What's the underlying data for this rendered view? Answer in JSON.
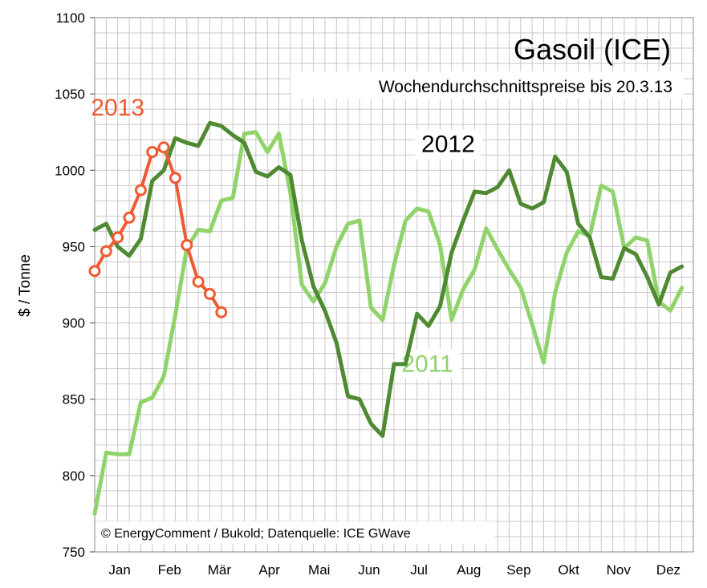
{
  "chart_data": {
    "type": "line",
    "title": "Gasoil (ICE)",
    "subtitle": "Wochendurchschnittspreise bis 20.3.13",
    "ylabel": "$ / Tonne",
    "xlabel": "",
    "ylim": [
      750,
      1100
    ],
    "yticks": [
      750,
      800,
      850,
      900,
      950,
      1000,
      1050,
      1100
    ],
    "months": [
      "Jan",
      "Feb",
      "Mär",
      "Apr",
      "Mai",
      "Jun",
      "Jul",
      "Aug",
      "Sep",
      "Okt",
      "Nov",
      "Dez"
    ],
    "xlim": [
      1,
      53
    ],
    "grid": true,
    "credit": "© EnergyComment / Bukold; Datenquelle: ICE GWave",
    "series": [
      {
        "name": "2011",
        "color": "#8fd36a",
        "label_x": 29.9,
        "label_y": 868,
        "values": [
          775,
          815,
          814,
          814,
          848,
          851,
          865,
          905,
          949,
          961,
          960,
          980,
          982,
          1024,
          1025,
          1012,
          1024,
          985,
          925,
          914,
          926,
          950,
          965,
          967,
          910,
          902,
          938,
          967,
          975,
          973,
          951,
          902,
          922,
          935,
          962,
          948,
          935,
          923,
          899,
          874,
          920,
          946,
          960,
          957,
          990,
          986,
          949,
          956,
          954,
          914,
          908,
          923
        ]
      },
      {
        "name": "2012",
        "color": "#4e8a32",
        "label_x": 31.7,
        "label_y": 1012,
        "values": [
          961,
          965,
          950,
          944,
          955,
          993,
          1000,
          1021,
          1018,
          1016,
          1031,
          1029,
          1023,
          1018,
          999,
          996,
          1002,
          997,
          954,
          924,
          908,
          887,
          852,
          850,
          834,
          826,
          873,
          873,
          906,
          898,
          911,
          946,
          967,
          986,
          985,
          989,
          1000,
          978,
          975,
          979,
          1009,
          999,
          965,
          956,
          930,
          929,
          949,
          945,
          930,
          912,
          933,
          937
        ]
      },
      {
        "name": "2013",
        "color": "#f05a32",
        "label_x": 3.0,
        "label_y": 1036,
        "values": [
          934,
          947,
          956,
          969,
          987,
          1012,
          1015,
          995,
          951,
          927,
          919,
          907
        ]
      }
    ]
  }
}
